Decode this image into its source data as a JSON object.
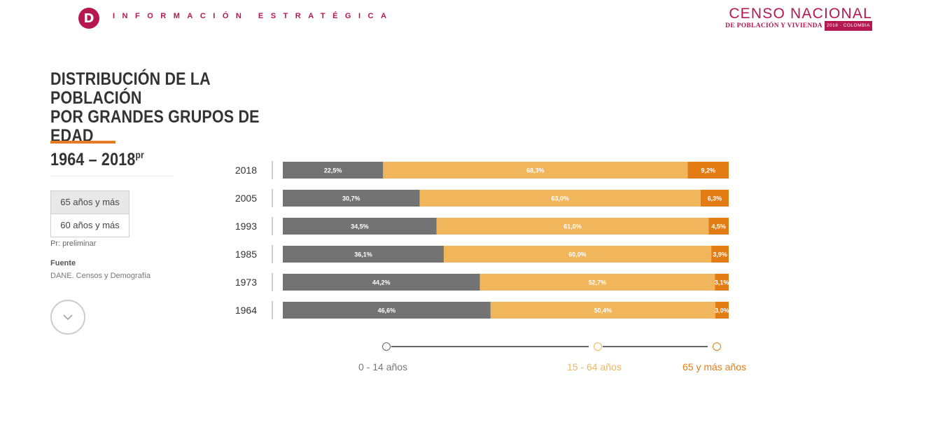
{
  "header": {
    "logo_letter": "D",
    "brand": "INFORMACIÓN ESTRATÉGICA",
    "censo_title": "CENSO NACIONAL",
    "censo_subtitle": "DE POBLACIÓN Y VIVIENDA",
    "censo_tag": "2018 · COLOMBIA"
  },
  "title": {
    "line1": "DISTRIBUCIÓN DE LA POBLACIÓN",
    "line2": "POR GRANDES GRUPOS DE EDAD",
    "line3": "1964 – 2018",
    "superscript": "pr"
  },
  "toggles": {
    "option_65": "65 años y más",
    "option_60": "60 años y más"
  },
  "note": "Pr: preliminar",
  "source": {
    "label": "Fuente",
    "text": "DANE. Censos y Demografía"
  },
  "colors": {
    "group_0_14": "#737373",
    "group_15_64": "#f1b55c",
    "group_65_plus": "#e37c14",
    "brand": "#b5184f",
    "accent_underline": "#e37c22"
  },
  "chart_data": {
    "type": "bar",
    "orientation": "horizontal",
    "stacked": true,
    "categories": [
      "2018",
      "2005",
      "1993",
      "1985",
      "1973",
      "1964"
    ],
    "series": [
      {
        "name": "0 - 14 años",
        "values": [
          22.5,
          30.7,
          34.5,
          36.1,
          44.2,
          46.6
        ],
        "labels": [
          "22,5%",
          "30,7%",
          "34,5%",
          "36,1%",
          "44,2%",
          "46,6%"
        ]
      },
      {
        "name": "15 - 64 años",
        "values": [
          68.3,
          63.0,
          61.0,
          60.0,
          52.7,
          50.4
        ],
        "labels": [
          "68,3%",
          "63,0%",
          "61,0%",
          "60,0%",
          "52,7%",
          "50,4%"
        ]
      },
      {
        "name": "65 y más años",
        "values": [
          9.2,
          6.3,
          4.5,
          3.9,
          3.1,
          3.0
        ],
        "labels": [
          "9,2%",
          "6,3%",
          "4,5%",
          "3,9%",
          "3,1%",
          "3,0%"
        ]
      }
    ],
    "xlim": [
      0,
      100
    ],
    "unit": "%"
  }
}
